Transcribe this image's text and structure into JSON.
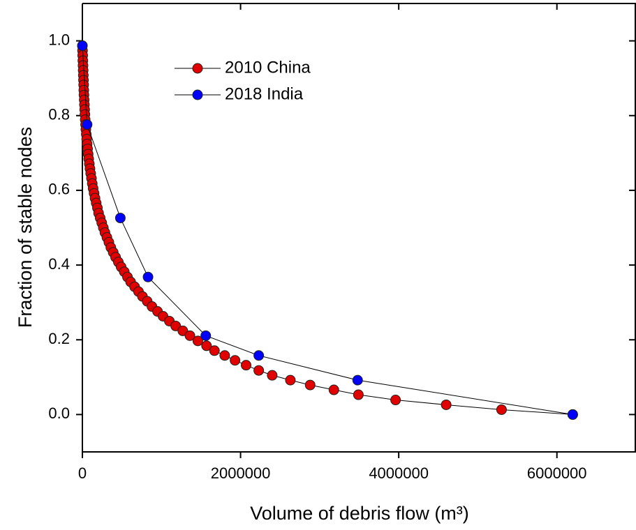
{
  "chart_data": {
    "type": "line",
    "x_label": "Volume of debris flow (m³)",
    "y_label": "Fraction of stable nodes",
    "xlim": [
      0,
      7000000
    ],
    "ylim": [
      -0.1,
      1.1
    ],
    "xticks": [
      0,
      2000000,
      4000000,
      6000000
    ],
    "yticks": [
      {
        "value": 0,
        "label": "0.0"
      },
      0.2,
      0.4,
      0.6,
      0.8,
      {
        "value": 1,
        "label": "1.0"
      }
    ],
    "series": [
      {
        "name": "2010 China",
        "color": "#e00000",
        "x": [
          0,
          2000,
          4000,
          6000,
          8000,
          10000,
          12000,
          14000,
          16000,
          18000,
          20000,
          23000,
          26000,
          29000,
          32000,
          36000,
          40000,
          44000,
          49000,
          54000,
          60000,
          66000,
          73000,
          80000,
          88000,
          96000,
          105000,
          115000,
          125000,
          136000,
          148000,
          160000,
          175000,
          190000,
          205000,
          225000,
          245000,
          265000,
          285000,
          310000,
          335000,
          360000,
          390000,
          420000,
          455000,
          490000,
          530000,
          570000,
          610000,
          660000,
          710000,
          760000,
          820000,
          880000,
          950000,
          1020000,
          1100000,
          1180000,
          1270000,
          1360000,
          1460000,
          1570000,
          1670000,
          1800000,
          1930000,
          2070000,
          2230000,
          2400000,
          2630000,
          2880000,
          3180000,
          3490000,
          3960000,
          4600000,
          5300000,
          6200000
        ],
        "values": [
          0.987,
          0.974,
          0.961,
          0.947,
          0.934,
          0.921,
          0.908,
          0.895,
          0.882,
          0.868,
          0.855,
          0.842,
          0.829,
          0.816,
          0.803,
          0.789,
          0.776,
          0.763,
          0.75,
          0.737,
          0.724,
          0.711,
          0.697,
          0.684,
          0.671,
          0.658,
          0.645,
          0.632,
          0.618,
          0.605,
          0.592,
          0.579,
          0.566,
          0.553,
          0.539,
          0.526,
          0.513,
          0.5,
          0.487,
          0.474,
          0.461,
          0.447,
          0.434,
          0.421,
          0.408,
          0.395,
          0.382,
          0.368,
          0.355,
          0.342,
          0.329,
          0.316,
          0.303,
          0.289,
          0.276,
          0.263,
          0.25,
          0.237,
          0.224,
          0.211,
          0.197,
          0.184,
          0.171,
          0.158,
          0.145,
          0.132,
          0.118,
          0.105,
          0.092,
          0.079,
          0.066,
          0.053,
          0.039,
          0.026,
          0.013,
          0
        ]
      },
      {
        "name": "2018 India",
        "color": "#0000ff",
        "x": [
          0,
          60000,
          480000,
          830000,
          1560000,
          2230000,
          3480000,
          6200000
        ],
        "values": [
          0.987,
          0.776,
          0.526,
          0.368,
          0.211,
          0.158,
          0.092,
          0
        ]
      }
    ]
  }
}
